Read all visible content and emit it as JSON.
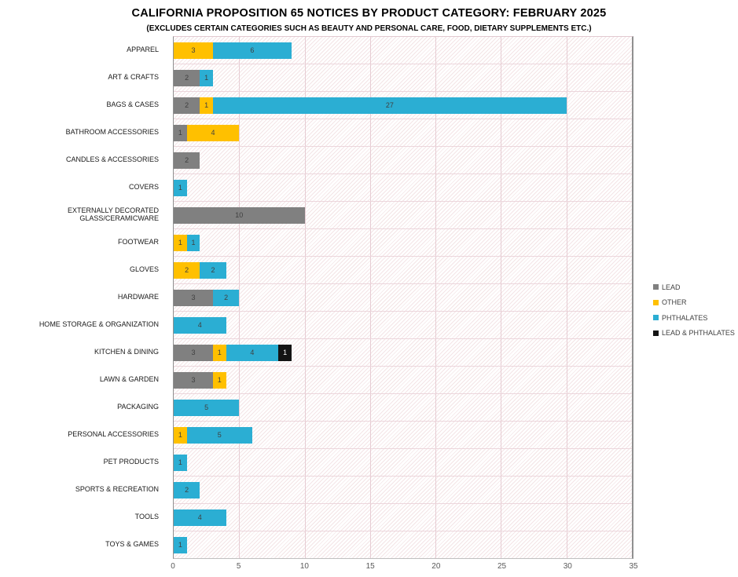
{
  "chart_data": {
    "type": "bar",
    "orientation": "horizontal",
    "stacked": true,
    "title": "CALIFORNIA PROPOSITION 65 NOTICES BY PRODUCT CATEGORY: FEBRUARY 2025",
    "subtitle": "(EXCLUDES CERTAIN CATEGORIES SUCH AS BEAUTY AND PERSONAL CARE, FOOD, DIETARY SUPPLEMENTS ETC.)",
    "categories": [
      "APPAREL",
      "ART & CRAFTS",
      "BAGS & CASES",
      "BATHROOM ACCESSORIES",
      "CANDLES & ACCESSORIES",
      "COVERS",
      "EXTERNALLY DECORATED GLASS/CERAMICWARE",
      "FOOTWEAR",
      "GLOVES",
      "HARDWARE",
      "HOME STORAGE & ORGANIZATION",
      "KITCHEN & DINING",
      "LAWN & GARDEN",
      "PACKAGING",
      "PERSONAL ACCESSORIES",
      "PET PRODUCTS",
      "SPORTS & RECREATION",
      "TOOLS",
      "TOYS & GAMES"
    ],
    "series": [
      {
        "name": "LEAD",
        "color": "#808080",
        "label_color": "#3f3f3f",
        "values": [
          0,
          2,
          2,
          1,
          2,
          0,
          10,
          0,
          0,
          3,
          0,
          3,
          3,
          0,
          0,
          0,
          0,
          0,
          0
        ]
      },
      {
        "name": "OTHER",
        "color": "#FFC000",
        "label_color": "#3f3f3f",
        "values": [
          3,
          0,
          1,
          4,
          0,
          0,
          0,
          1,
          2,
          0,
          0,
          1,
          1,
          0,
          1,
          0,
          0,
          0,
          0
        ]
      },
      {
        "name": "PHTHALATES",
        "color": "#2BAED3",
        "label_color": "#3f3f3f",
        "values": [
          6,
          1,
          27,
          0,
          0,
          1,
          0,
          1,
          2,
          2,
          4,
          4,
          0,
          5,
          5,
          1,
          2,
          4,
          1
        ]
      },
      {
        "name": "LEAD & PHTHALATES",
        "color": "#141414",
        "label_color": "#ffffff",
        "values": [
          0,
          0,
          0,
          0,
          0,
          0,
          0,
          0,
          0,
          0,
          0,
          1,
          0,
          0,
          0,
          0,
          0,
          0,
          0
        ]
      }
    ],
    "xlabel": "",
    "ylabel": "",
    "xlim": [
      0,
      35
    ],
    "xticks": [
      0,
      5,
      10,
      15,
      20,
      25,
      30,
      35
    ],
    "grid": true,
    "legend_position": "right",
    "style": {
      "grid_color": "#e6ccd3",
      "row_line_color": "#ecd6dc",
      "plot_border_color": "#909090",
      "hatch_color": "#d6a0a6",
      "axis_text_color": "#595959",
      "category_text_color": "#1a1a1a",
      "legend_text_color": "#404040"
    }
  }
}
